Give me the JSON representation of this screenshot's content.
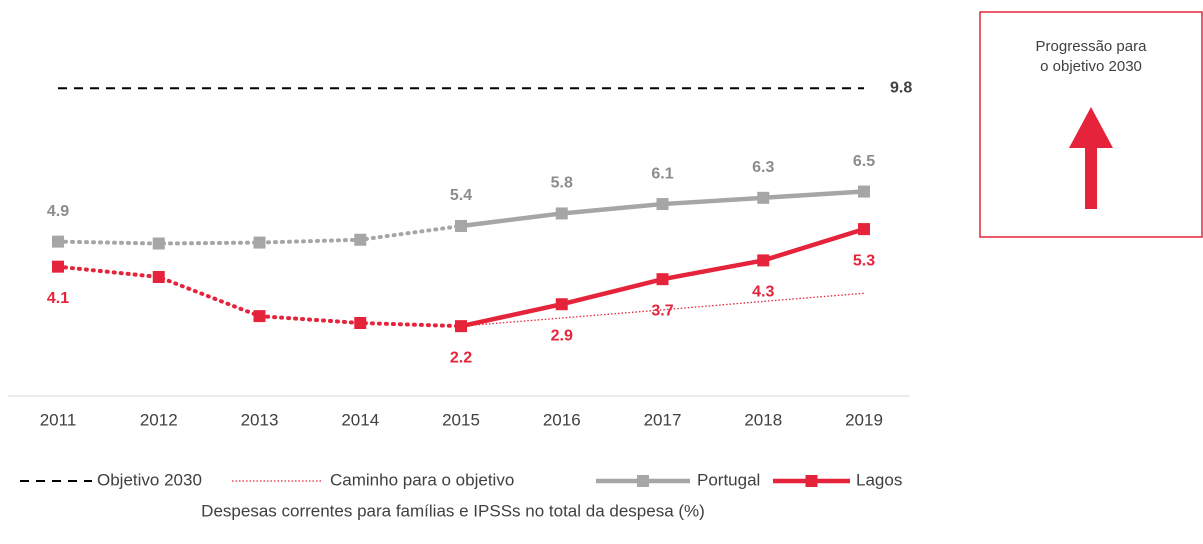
{
  "chart_data": {
    "type": "line",
    "categories": [
      "2011",
      "2012",
      "2013",
      "2014",
      "2015",
      "2016",
      "2017",
      "2018",
      "2019"
    ],
    "ylim": [
      0,
      10.3
    ],
    "reference_line": {
      "name": "Objetivo 2030",
      "value": 9.8,
      "color": "#000000"
    },
    "series": [
      {
        "name": "Caminho para o objetivo",
        "color": "#e5243b",
        "style": "dotted-thin",
        "values": [
          null,
          null,
          null,
          null,
          2.2,
          2.46,
          2.72,
          2.99,
          3.25
        ]
      },
      {
        "name": "Portugal",
        "color": "#a6a6a6",
        "style": "dotted-then-solid",
        "dotted_until": "2015",
        "label_position": "above",
        "values": [
          4.9,
          4.84,
          4.87,
          4.96,
          5.4,
          5.8,
          6.1,
          6.3,
          6.5
        ],
        "value_labels": [
          "4.9",
          null,
          null,
          null,
          "5.4",
          "5.8",
          "6.1",
          "6.3",
          "6.5"
        ]
      },
      {
        "name": "Lagos",
        "color": "#e5243b",
        "style": "dotted-then-solid",
        "dotted_until": "2015",
        "label_position": "below",
        "values": [
          4.1,
          3.77,
          2.52,
          2.3,
          2.2,
          2.9,
          3.7,
          4.3,
          5.3
        ],
        "value_labels": [
          "4.1",
          null,
          null,
          null,
          "2.2",
          "2.9",
          "3.7",
          "4.3",
          "5.3"
        ]
      }
    ],
    "xlabel": "Despesas correntes para famílias e IPSSs no total da despesa (%)",
    "annotation": {
      "lines": [
        "Progressão para",
        "o objetivo 2030"
      ],
      "color": "#e5243b"
    }
  }
}
